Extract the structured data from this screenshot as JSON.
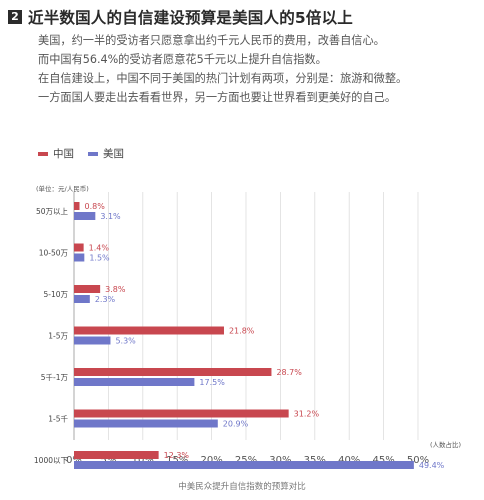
{
  "header": {
    "number": "2",
    "title": "近半数国人的自信建设预算是美国人的5倍以上"
  },
  "intro": {
    "lines": [
      "美国，约一半的受访者只愿意拿出约千元人民币的费用，改善自信心。",
      "而中国有56.4%的受访者愿意花5千元以上提升自信指数。",
      "在自信建设上，中国不同于美国的热门计划有两项，分别是：旅游和微整。",
      "一方面国人要走出去看看世界，另一方面也要让世界看到更美好的自己。"
    ]
  },
  "colors": {
    "china": "#c8474f",
    "usa": "#6f77c9",
    "grid": "#dddddd"
  },
  "chart_data": {
    "type": "bar",
    "orientation": "horizontal",
    "unit_label": "(单位：元/人民币)",
    "note": "(人数占比)",
    "caption": "中美民众提升自信指数的预算对比",
    "categories": [
      "50万以上",
      "10-50万",
      "5-10万",
      "1-5万",
      "5千-1万",
      "1-5千",
      "1000以下"
    ],
    "series": [
      {
        "name": "中国",
        "values": [
          0.8,
          1.4,
          3.8,
          21.8,
          28.7,
          31.2,
          12.3
        ],
        "labels": [
          "0.8%",
          "1.4%",
          "3.8%",
          "21.8%",
          "28.7%",
          "31.2%",
          "12.3%"
        ]
      },
      {
        "name": "美国",
        "values": [
          3.1,
          1.5,
          2.3,
          5.3,
          17.5,
          20.9,
          49.4
        ],
        "labels": [
          "3.1%",
          "1.5%",
          "2.3%",
          "5.3%",
          "17.5%",
          "20.9%",
          "49.4%"
        ]
      }
    ],
    "xlim": [
      0,
      50
    ],
    "xticks": [
      "0%",
      "5%",
      "10%",
      "15%",
      "20%",
      "25%",
      "30%",
      "35%",
      "40%",
      "45%",
      "50%"
    ],
    "grid": true,
    "legend": "top-left"
  }
}
